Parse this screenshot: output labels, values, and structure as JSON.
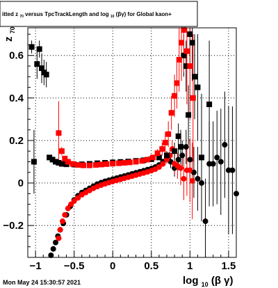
{
  "title": {
    "prefix": "itted  z",
    "prefix_sub": "70",
    "middle": "  versus TpcTrackLength and log",
    "middle_sub": "10",
    "suffix": "(βγ) for Global kaon+"
  },
  "timestamp": "Mon May 24 15:30:57 2021",
  "colors": {
    "series_black": "#000000",
    "series_dark": "#3a0000",
    "series_red": "#ff0000",
    "grid": "#000000",
    "frame": "#000000"
  },
  "chart_data": {
    "type": "scatter",
    "title": "itted z70 versus TpcTrackLength and log10(βγ) for Global kaon+",
    "xlabel": "log10(β γ)",
    "xlabel_main": "log",
    "xlabel_sub": "10",
    "xlabel_tail": "(β γ)",
    "ylabel": "z70",
    "ylabel_main": "z",
    "ylabel_sub": "70",
    "xlim": [
      -1.1,
      1.6
    ],
    "ylim": [
      -0.35,
      0.73
    ],
    "xticks": [
      -1,
      -0.5,
      0,
      0.5,
      1,
      1.5
    ],
    "xtick_labels": [
      "−1",
      "−0.5",
      "0",
      "0.5",
      "1",
      "1.5"
    ],
    "yticks": [
      -0.2,
      0,
      0.2,
      0.4,
      0.6
    ],
    "ytick_labels": [
      "−0.2",
      "0",
      "0.2",
      "0.4",
      "0.6"
    ],
    "grid": true,
    "series": [
      {
        "marker": "square",
        "color": "black",
        "points": [
          [
            -1.05,
            0.64,
            0.03
          ],
          [
            -1.02,
            0.1,
            0.15
          ],
          [
            -0.98,
            0.56,
            0.07
          ],
          [
            -0.95,
            0.63,
            0.04
          ],
          [
            -0.92,
            0.54,
            0.07
          ],
          [
            -0.89,
            0.52,
            0.06
          ],
          [
            -0.86,
            0.51,
            0.06
          ],
          [
            -0.82,
            0.12,
            0.008
          ],
          [
            -0.78,
            0.11,
            0.006
          ],
          [
            -0.74,
            0.1,
            0.005
          ],
          [
            -0.7,
            0.095,
            0.004
          ],
          [
            -0.66,
            0.09,
            0.004
          ],
          [
            -0.6,
            0.088,
            0.003
          ],
          [
            -0.5,
            0.087,
            0.003
          ],
          [
            -0.4,
            0.088,
            0.003
          ],
          [
            -0.3,
            0.09,
            0.003
          ],
          [
            -0.2,
            0.093,
            0.003
          ],
          [
            -0.1,
            0.095,
            0.003
          ],
          [
            0.0,
            0.097,
            0.003
          ],
          [
            0.1,
            0.099,
            0.003
          ],
          [
            0.2,
            0.101,
            0.003
          ],
          [
            0.3,
            0.104,
            0.004
          ],
          [
            0.4,
            0.107,
            0.005
          ],
          [
            0.5,
            0.112,
            0.006
          ],
          [
            0.6,
            0.12,
            0.01
          ],
          [
            0.7,
            0.13,
            0.02
          ],
          [
            0.8,
            0.15,
            0.04
          ],
          [
            0.85,
            0.22,
            0.06
          ],
          [
            0.88,
            0.17,
            0.08
          ],
          [
            0.92,
            0.6,
            0.1
          ],
          [
            0.95,
            0.55,
            0.12
          ],
          [
            0.98,
            0.32,
            0.14
          ],
          [
            1.0,
            0.7,
            0.15
          ],
          [
            1.03,
            0.66,
            0.18
          ],
          [
            1.06,
            0.5,
            0.2
          ],
          [
            1.1,
            0.45,
            0.25
          ],
          [
            1.15,
            0.12,
            0.3
          ],
          [
            1.25,
            0.37,
            0.3
          ]
        ]
      },
      {
        "marker": "square",
        "color": "red",
        "points": [
          [
            -0.7,
            0.235,
            0.15
          ],
          [
            -0.66,
            0.15,
            0.02
          ],
          [
            -0.62,
            0.115,
            0.006
          ],
          [
            -0.58,
            0.1,
            0.004
          ],
          [
            -0.52,
            0.09,
            0.003
          ],
          [
            -0.45,
            0.085,
            0.003
          ],
          [
            -0.38,
            0.083,
            0.003
          ],
          [
            -0.3,
            0.083,
            0.003
          ],
          [
            -0.22,
            0.085,
            0.003
          ],
          [
            -0.15,
            0.087,
            0.003
          ],
          [
            -0.08,
            0.089,
            0.003
          ],
          [
            0.0,
            0.091,
            0.003
          ],
          [
            0.08,
            0.093,
            0.003
          ],
          [
            0.15,
            0.095,
            0.003
          ],
          [
            0.22,
            0.097,
            0.003
          ],
          [
            0.3,
            0.1,
            0.004
          ],
          [
            0.38,
            0.104,
            0.005
          ],
          [
            0.45,
            0.11,
            0.007
          ],
          [
            0.52,
            0.12,
            0.01
          ],
          [
            0.58,
            0.14,
            0.02
          ],
          [
            0.64,
            0.16,
            0.03
          ],
          [
            0.68,
            0.19,
            0.05
          ],
          [
            0.72,
            0.23,
            0.06
          ],
          [
            0.76,
            0.33,
            0.08
          ],
          [
            0.8,
            0.41,
            0.1
          ],
          [
            0.83,
            0.47,
            0.12
          ],
          [
            0.86,
            0.58,
            0.15
          ],
          [
            0.89,
            0.66,
            0.18
          ],
          [
            0.92,
            0.72,
            0.2
          ],
          [
            0.96,
            0.62,
            0.25
          ],
          [
            1.0,
            0.55,
            0.25
          ],
          [
            1.04,
            0.4,
            0.3
          ]
        ]
      },
      {
        "marker": "circle",
        "color": "black",
        "points": [
          [
            -0.8,
            -0.34,
            0.01
          ],
          [
            -0.77,
            -0.31,
            0.008
          ],
          [
            -0.74,
            -0.28,
            0.007
          ],
          [
            -0.71,
            -0.25,
            0.006
          ],
          [
            -0.68,
            -0.22,
            0.005
          ],
          [
            -0.64,
            -0.19,
            0.005
          ],
          [
            -0.6,
            -0.15,
            0.004
          ],
          [
            -0.55,
            -0.11,
            0.004
          ],
          [
            -0.5,
            -0.08,
            0.003
          ],
          [
            -0.45,
            -0.06,
            0.003
          ],
          [
            -0.4,
            -0.045,
            0.003
          ],
          [
            -0.35,
            -0.035,
            0.003
          ],
          [
            -0.3,
            -0.025,
            0.003
          ],
          [
            -0.25,
            -0.015,
            0.003
          ],
          [
            -0.2,
            -0.005,
            0.003
          ],
          [
            -0.15,
            0.002,
            0.003
          ],
          [
            -0.1,
            0.008,
            0.003
          ],
          [
            -0.05,
            0.013,
            0.003
          ],
          [
            0.0,
            0.018,
            0.003
          ],
          [
            0.05,
            0.023,
            0.003
          ],
          [
            0.1,
            0.028,
            0.003
          ],
          [
            0.15,
            0.033,
            0.003
          ],
          [
            0.2,
            0.038,
            0.003
          ],
          [
            0.25,
            0.043,
            0.003
          ],
          [
            0.3,
            0.048,
            0.004
          ],
          [
            0.35,
            0.053,
            0.004
          ],
          [
            0.4,
            0.058,
            0.005
          ],
          [
            0.45,
            0.063,
            0.006
          ],
          [
            0.5,
            0.068,
            0.007
          ],
          [
            0.55,
            0.075,
            0.008
          ],
          [
            0.6,
            0.085,
            0.01
          ],
          [
            0.65,
            0.1,
            0.015
          ],
          [
            0.7,
            0.12,
            0.02
          ],
          [
            0.75,
            0.1,
            0.03
          ],
          [
            0.8,
            0.07,
            0.04
          ],
          [
            0.85,
            0.11,
            0.05
          ],
          [
            0.9,
            0.13,
            0.07
          ],
          [
            0.95,
            0.17,
            0.08
          ],
          [
            1.0,
            0.11,
            0.1
          ],
          [
            1.05,
            0.05,
            0.12
          ],
          [
            1.1,
            0.02,
            0.15
          ],
          [
            1.15,
            0.0,
            0.18
          ],
          [
            1.2,
            -0.18,
            0.2
          ],
          [
            1.25,
            0.09,
            0.2
          ],
          [
            1.3,
            0.09,
            0.2
          ],
          [
            1.35,
            0.12,
            0.22
          ],
          [
            1.4,
            0.1,
            0.25
          ],
          [
            1.45,
            0.18,
            0.25
          ],
          [
            1.5,
            0.06,
            0.3
          ],
          [
            1.55,
            0.06,
            0.3
          ],
          [
            1.6,
            -0.05,
            0.3
          ]
        ]
      },
      {
        "marker": "circle",
        "color": "red",
        "points": [
          [
            -0.7,
            -0.26,
            0.01
          ],
          [
            -0.68,
            -0.22,
            0.008
          ],
          [
            -0.65,
            -0.18,
            0.007
          ],
          [
            -0.62,
            -0.15,
            0.006
          ],
          [
            -0.58,
            -0.12,
            0.005
          ],
          [
            -0.54,
            -0.1,
            0.005
          ],
          [
            -0.5,
            -0.085,
            0.004
          ],
          [
            -0.45,
            -0.07,
            0.004
          ],
          [
            -0.4,
            -0.055,
            0.004
          ],
          [
            -0.35,
            -0.045,
            0.003
          ],
          [
            -0.3,
            -0.035,
            0.003
          ],
          [
            -0.25,
            -0.025,
            0.003
          ],
          [
            -0.2,
            -0.017,
            0.003
          ],
          [
            -0.15,
            -0.01,
            0.003
          ],
          [
            -0.1,
            -0.004,
            0.003
          ],
          [
            -0.05,
            0.002,
            0.003
          ],
          [
            0.0,
            0.007,
            0.003
          ],
          [
            0.05,
            0.012,
            0.003
          ],
          [
            0.1,
            0.017,
            0.003
          ],
          [
            0.15,
            0.022,
            0.003
          ],
          [
            0.2,
            0.027,
            0.003
          ],
          [
            0.25,
            0.032,
            0.003
          ],
          [
            0.3,
            0.037,
            0.004
          ],
          [
            0.35,
            0.042,
            0.004
          ],
          [
            0.4,
            0.047,
            0.005
          ],
          [
            0.45,
            0.052,
            0.006
          ],
          [
            0.5,
            0.058,
            0.007
          ],
          [
            0.55,
            0.065,
            0.008
          ],
          [
            0.6,
            0.075,
            0.01
          ],
          [
            0.65,
            0.09,
            0.015
          ],
          [
            0.7,
            0.11,
            0.02
          ],
          [
            0.74,
            0.13,
            0.03
          ],
          [
            0.77,
            0.16,
            0.04
          ],
          [
            0.8,
            0.09,
            0.05
          ],
          [
            0.84,
            0.08,
            0.06
          ],
          [
            0.88,
            0.07,
            0.08
          ],
          [
            0.92,
            0.02,
            0.1
          ],
          [
            0.96,
            0.06,
            0.12
          ],
          [
            1.0,
            0.06,
            0.15
          ],
          [
            1.03,
            0.01,
            0.18
          ]
        ]
      }
    ]
  }
}
